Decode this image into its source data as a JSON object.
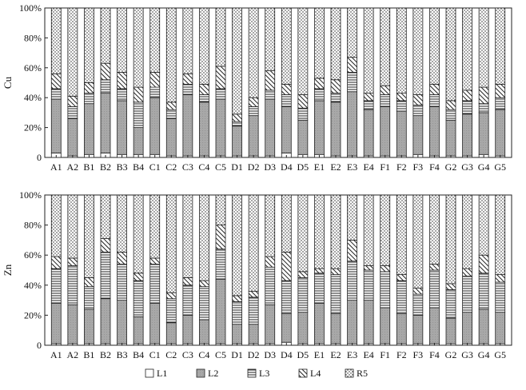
{
  "colors": {
    "L1": "#ffffff",
    "L2": "#a8a8a8",
    "L3": "#ffffff",
    "L4": "#ffffff",
    "R5": "#ffffff",
    "stroke": "#222222"
  },
  "chart_data": [
    {
      "type": "bar",
      "stacked": true,
      "ylabel": "Cu",
      "yticks": [
        "0",
        "20%",
        "40%",
        "60%",
        "80%",
        "100%"
      ],
      "ylim": [
        0,
        100
      ],
      "categories": [
        "A1",
        "A2",
        "B1",
        "B2",
        "B3",
        "B4",
        "C1",
        "C2",
        "C3",
        "C4",
        "C5",
        "D1",
        "D2",
        "D3",
        "D4",
        "D5",
        "E1",
        "E2",
        "E3",
        "E4",
        "F1",
        "F2",
        "F3",
        "F4",
        "G2",
        "G3",
        "G4",
        "G5"
      ],
      "series": [
        {
          "name": "L1",
          "values": [
            3,
            1,
            2,
            3,
            2,
            2,
            2,
            1,
            1,
            1,
            1,
            1,
            1,
            1,
            3,
            2,
            2,
            1,
            1,
            1,
            1,
            1,
            2,
            1,
            1,
            1,
            2,
            1
          ]
        },
        {
          "name": "L2",
          "values": [
            36,
            25,
            34,
            40,
            36,
            18,
            38,
            25,
            41,
            36,
            38,
            20,
            27,
            38,
            31,
            23,
            36,
            36,
            43,
            31,
            33,
            30,
            26,
            33,
            24,
            28,
            28,
            31
          ]
        },
        {
          "name": "L3",
          "values": [
            7,
            8,
            7,
            9,
            8,
            17,
            7,
            6,
            7,
            5,
            7,
            3,
            6,
            6,
            8,
            8,
            8,
            6,
            13,
            6,
            8,
            7,
            7,
            8,
            7,
            9,
            6,
            8
          ]
        },
        {
          "name": "L4",
          "values": [
            10,
            7,
            7,
            11,
            11,
            10,
            10,
            5,
            7,
            7,
            15,
            5,
            6,
            13,
            7,
            9,
            7,
            9,
            10,
            5,
            6,
            5,
            7,
            7,
            6,
            7,
            11,
            9
          ]
        },
        {
          "name": "R5",
          "values": [
            44,
            59,
            50,
            37,
            43,
            53,
            43,
            63,
            44,
            51,
            39,
            71,
            60,
            42,
            51,
            58,
            47,
            48,
            33,
            57,
            52,
            57,
            58,
            51,
            62,
            55,
            53,
            51
          ]
        }
      ]
    },
    {
      "type": "bar",
      "stacked": true,
      "ylabel": "Zn",
      "yticks": [
        "0",
        "20%",
        "40%",
        "60%",
        "80%",
        "100%"
      ],
      "ylim": [
        0,
        100
      ],
      "categories": [
        "A1",
        "A2",
        "B1",
        "B2",
        "B3",
        "B4",
        "C1",
        "C2",
        "C3",
        "C4",
        "C5",
        "D1",
        "D2",
        "D3",
        "D4",
        "D5",
        "E1",
        "E2",
        "E3",
        "E4",
        "F1",
        "F2",
        "F3",
        "F4",
        "G2",
        "G3",
        "G4",
        "G5"
      ],
      "series": [
        {
          "name": "L1",
          "values": [
            1,
            1,
            1,
            1,
            1,
            1,
            1,
            1,
            1,
            1,
            1,
            1,
            1,
            1,
            2,
            1,
            1,
            1,
            1,
            1,
            1,
            1,
            1,
            1,
            1,
            1,
            1,
            1
          ]
        },
        {
          "name": "L2",
          "values": [
            27,
            26,
            23,
            30,
            29,
            18,
            27,
            14,
            19,
            16,
            43,
            13,
            13,
            26,
            19,
            21,
            27,
            20,
            29,
            29,
            24,
            20,
            19,
            24,
            17,
            21,
            23,
            21
          ]
        },
        {
          "name": "L3",
          "values": [
            23,
            26,
            15,
            31,
            24,
            24,
            26,
            16,
            20,
            22,
            20,
            15,
            18,
            25,
            22,
            23,
            20,
            26,
            26,
            20,
            24,
            22,
            14,
            25,
            19,
            24,
            24,
            20
          ]
        },
        {
          "name": "L4",
          "values": [
            8,
            5,
            6,
            9,
            8,
            5,
            4,
            4,
            5,
            4,
            16,
            4,
            4,
            7,
            19,
            4,
            3,
            4,
            14,
            3,
            4,
            4,
            4,
            4,
            4,
            5,
            12,
            5
          ]
        },
        {
          "name": "R5",
          "values": [
            41,
            42,
            55,
            29,
            38,
            52,
            42,
            65,
            55,
            57,
            20,
            67,
            64,
            41,
            38,
            51,
            49,
            49,
            30,
            47,
            47,
            53,
            62,
            46,
            59,
            49,
            40,
            53
          ]
        }
      ]
    }
  ],
  "legend": [
    "L1",
    "L2",
    "L3",
    "L4",
    "R5"
  ]
}
